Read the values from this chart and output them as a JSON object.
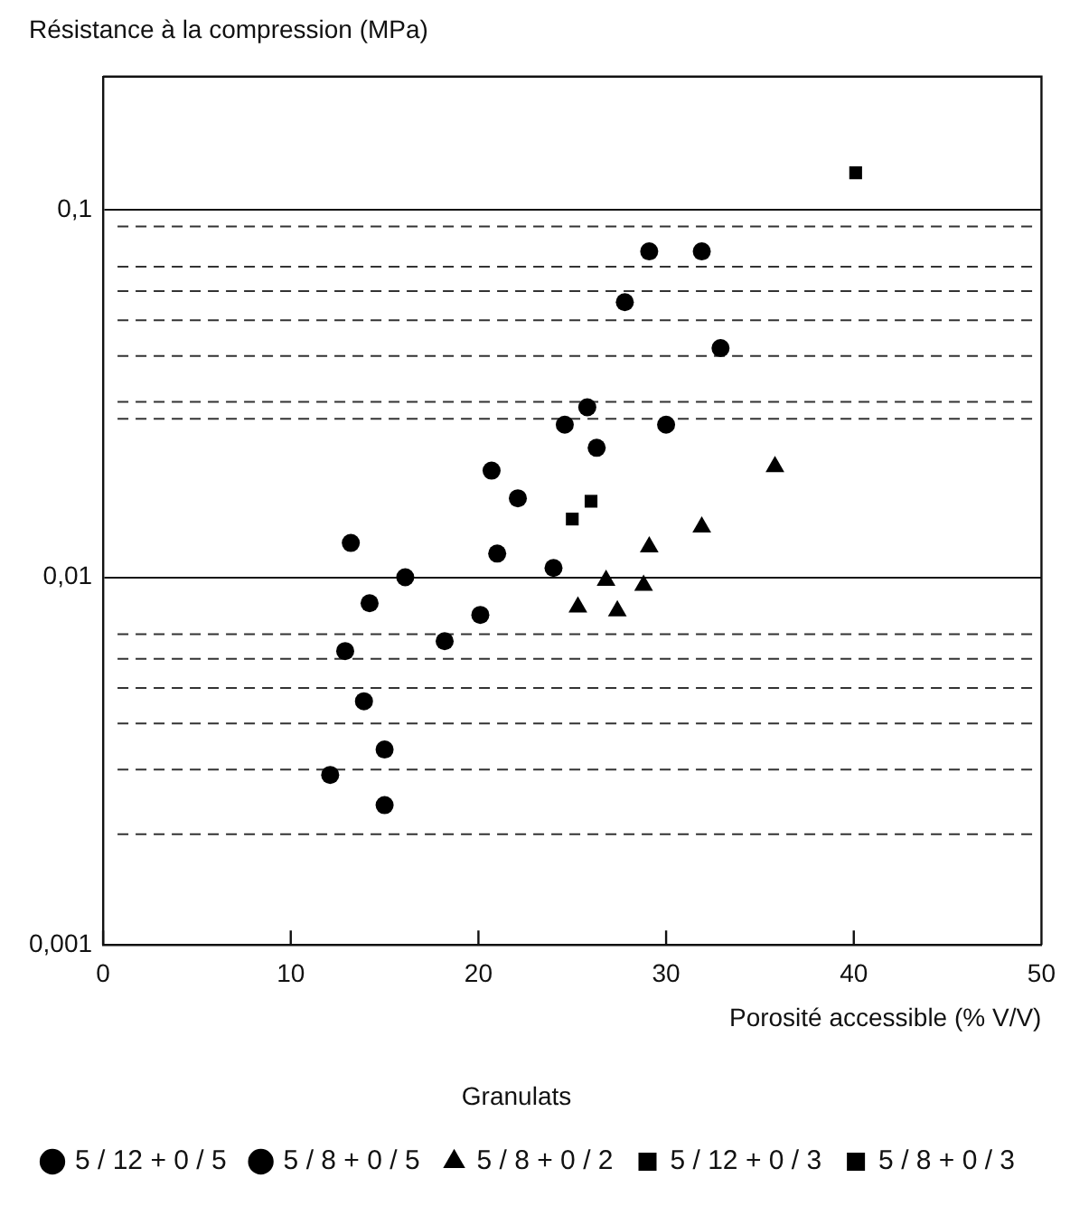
{
  "chart_data": {
    "type": "scatter",
    "ylabel": "Résistance à la compression (MPa)",
    "xlabel": "Porosité accessible (% V/V)",
    "legend_title": "Granulats",
    "log": "y",
    "grid": "y",
    "legend": "bottom",
    "marker": "circle",
    "xlim": [
      0,
      50
    ],
    "xticks": [
      0,
      10,
      20,
      30,
      40,
      50
    ],
    "ylim": [
      0.001,
      0.23
    ],
    "yticks": [
      {
        "value": 0.001,
        "label": "0,001"
      },
      {
        "value": 0.01,
        "label": "0,01"
      },
      {
        "value": 0.1,
        "label": "0,1"
      }
    ],
    "series": [
      {
        "name": "5 / 12 + 0 / 5",
        "color": "#000000",
        "x": [
          29.1,
          31.9,
          27.8,
          32.9,
          25.8,
          24.6,
          30.0,
          26.3,
          20.7,
          22.1,
          13.2,
          21.0,
          24.0,
          16.1,
          20.1,
          12.9,
          18.2,
          13.9,
          15.0,
          12.1,
          15.0
        ],
        "values": [
          0.077,
          0.077,
          0.056,
          0.042,
          0.029,
          0.026,
          0.026,
          0.0225,
          0.0195,
          0.0164,
          0.0124,
          0.0116,
          0.0106,
          0.01,
          0.0079,
          0.0063,
          0.0067,
          0.0046,
          0.0034,
          0.0029,
          0.0024
        ]
      },
      {
        "name": "5 / 8 + 0 / 5",
        "color": "#000000",
        "x": [
          14.2
        ],
        "values": [
          0.0085
        ]
      },
      {
        "name": "5 / 8 + 0 / 2",
        "color": "#000000",
        "marker": "triangle",
        "x": [
          35.8,
          31.9,
          29.1,
          26.8,
          28.8,
          25.3,
          27.4
        ],
        "values": [
          0.02,
          0.0137,
          0.0121,
          0.0098,
          0.0095,
          0.0083,
          0.0081
        ]
      },
      {
        "name": "5 / 12 + 0 / 3",
        "color": "#000000",
        "marker": "square",
        "x": [
          25.0,
          40.1
        ],
        "values": [
          0.0144,
          0.126
        ]
      },
      {
        "name": "5 / 8 + 0 / 3",
        "color": "#000000",
        "marker": "square",
        "x": [
          26.0
        ],
        "values": [
          0.0161
        ]
      }
    ],
    "ref_lines": [
      {
        "axis": "y",
        "value": 0.002,
        "line_style": "dashed",
        "color": "#333333"
      },
      {
        "axis": "y",
        "value": 0.003,
        "line_style": "dashed",
        "color": "#333333"
      },
      {
        "axis": "y",
        "value": 0.004,
        "line_style": "dashed",
        "color": "#333333"
      },
      {
        "axis": "y",
        "value": 0.005,
        "line_style": "dashed",
        "color": "#333333"
      },
      {
        "axis": "y",
        "value": 0.006,
        "line_style": "dashed",
        "color": "#333333"
      },
      {
        "axis": "y",
        "value": 0.007,
        "line_style": "dashed",
        "color": "#333333"
      },
      {
        "axis": "y",
        "value": 0.027,
        "line_style": "dashed",
        "color": "#333333"
      },
      {
        "axis": "y",
        "value": 0.03,
        "line_style": "dashed",
        "color": "#333333"
      },
      {
        "axis": "y",
        "value": 0.04,
        "line_style": "dashed",
        "color": "#333333"
      },
      {
        "axis": "y",
        "value": 0.05,
        "line_style": "dashed",
        "color": "#333333"
      },
      {
        "axis": "y",
        "value": 0.06,
        "line_style": "dashed",
        "color": "#333333"
      },
      {
        "axis": "y",
        "value": 0.07,
        "line_style": "dashed",
        "color": "#333333"
      },
      {
        "axis": "y",
        "value": 0.09,
        "line_style": "dashed",
        "color": "#333333"
      }
    ]
  }
}
